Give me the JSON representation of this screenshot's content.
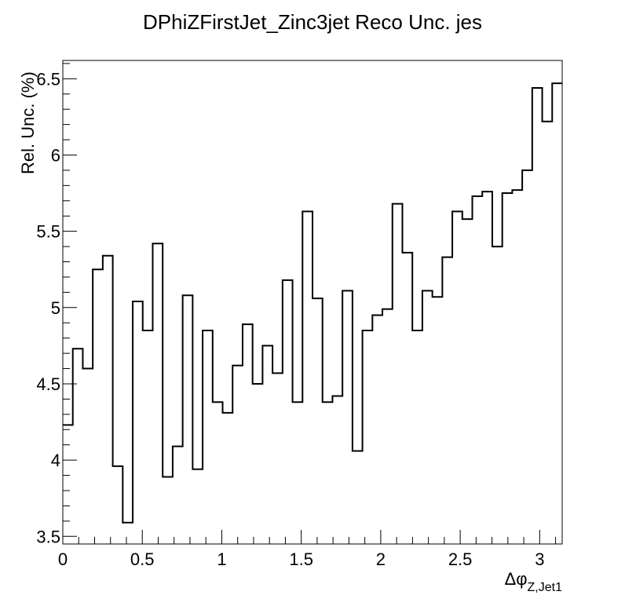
{
  "chart_data": {
    "type": "line",
    "subtype": "step-histogram",
    "title": "DPhiZFirstJet_Zinc3jet Reco Unc. jes",
    "xlabel_main": "Δφ",
    "xlabel_sub": "Z,Jet1",
    "ylabel": "Rel. Unc. (%)",
    "xlim": [
      0,
      3.1416
    ],
    "ylim": [
      3.45,
      6.62
    ],
    "xticks": [
      0,
      0.5,
      1,
      1.5,
      2,
      2.5,
      3
    ],
    "xtick_labels": [
      "0",
      "0.5",
      "1",
      "1.5",
      "2",
      "2.5",
      "3"
    ],
    "yticks": [
      3.5,
      4,
      4.5,
      5,
      5.5,
      6,
      6.5
    ],
    "ytick_labels": [
      "3.5",
      "4",
      "4.5",
      "5",
      "5.5",
      "6",
      "6.5"
    ],
    "grid": false,
    "legend": "none",
    "line_color": "#000000",
    "bin_count": 50,
    "values": [
      4.23,
      4.73,
      4.6,
      5.25,
      5.34,
      3.96,
      3.59,
      5.04,
      4.85,
      5.42,
      3.89,
      4.09,
      5.08,
      3.94,
      4.85,
      4.38,
      4.31,
      4.62,
      4.89,
      4.5,
      4.75,
      4.57,
      5.18,
      4.38,
      5.63,
      5.06,
      4.38,
      4.42,
      5.11,
      4.06,
      4.85,
      4.95,
      4.99,
      5.68,
      5.36,
      4.85,
      5.11,
      5.07,
      5.33,
      5.63,
      5.58,
      5.73,
      5.76,
      5.4,
      5.75,
      5.77,
      5.9,
      6.44,
      6.22,
      6.47
    ]
  }
}
